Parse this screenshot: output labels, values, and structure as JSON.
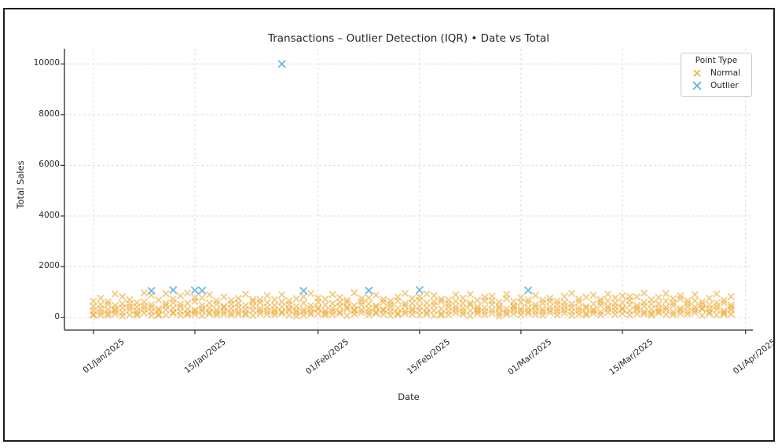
{
  "figure": {
    "border_color": "#1c1c1c",
    "background": "#ffffff",
    "grid_color": "#dcdcdc",
    "spine_color": "#2b2b2b",
    "text_color": "#262626"
  },
  "chart_data": {
    "type": "scatter",
    "title": "Transactions – Outlier Detection (IQR) • Date vs Total",
    "xlabel": "Date",
    "ylabel": "Total Sales",
    "grid": "dashed, both axes",
    "x_axis": {
      "kind": "date",
      "start": "01/Jan/2025",
      "end": "01/Apr/2025",
      "xlim_days": [
        -4,
        91
      ],
      "ticks": [
        {
          "day": 0,
          "label": "01/Jan/2025"
        },
        {
          "day": 14,
          "label": "15/Jan/2025"
        },
        {
          "day": 31,
          "label": "01/Feb/2025"
        },
        {
          "day": 45,
          "label": "15/Feb/2025"
        },
        {
          "day": 59,
          "label": "01/Mar/2025"
        },
        {
          "day": 73,
          "label": "15/Mar/2025"
        },
        {
          "day": 90,
          "label": "01/Apr/2025"
        }
      ]
    },
    "y_axis": {
      "ylim": [
        -500,
        10600
      ],
      "ticks": [
        {
          "value": 0,
          "label": "0"
        },
        {
          "value": 2000,
          "label": "2000"
        },
        {
          "value": 4000,
          "label": "4000"
        },
        {
          "value": 6000,
          "label": "6000"
        },
        {
          "value": 8000,
          "label": "8000"
        },
        {
          "value": 10000,
          "label": "10000"
        }
      ]
    },
    "legend": {
      "title": "Point Type",
      "position": "upper right",
      "entries": [
        {
          "label": "Normal",
          "marker": "x",
          "color": "#eda62c"
        },
        {
          "label": "Outlier",
          "marker": "x",
          "color": "#5bb3e4"
        }
      ]
    },
    "series": [
      {
        "name": "Normal",
        "marker": "x",
        "color": "#eda62c",
        "opacity": 0.6,
        "note": "estimated ~5 transactions per day, days 0-88 after 01/Jan/2025, totals ~60-975",
        "values_per_day": [
          [
            120,
            430,
            85,
            640,
            265
          ],
          [
            210,
            95,
            760,
            340,
            505
          ],
          [
            510,
            160,
            300,
            80,
            615
          ],
          [
            930,
            250,
            140,
            470,
            330
          ],
          [
            60,
            380,
            820,
            190,
            540
          ],
          [
            290,
            700,
            110,
            540,
            415
          ],
          [
            150,
            90,
            420,
            260,
            580
          ],
          [
            610,
            330,
            970,
            180,
            450
          ],
          [
            75,
            500,
            230,
            880,
            395
          ],
          [
            350,
            130,
            690,
            270,
            85
          ],
          [
            460,
            940,
            100,
            310,
            555
          ],
          [
            200,
            580,
            160,
            730,
            365
          ],
          [
            90,
            410,
            850,
            240,
            520
          ],
          [
            560,
            170,
            320,
            960,
            110
          ],
          [
            300,
            120,
            640,
            220,
            775
          ],
          [
            780,
            260,
            70,
            480,
            350
          ],
          [
            140,
            900,
            370,
            210,
            565
          ],
          [
            530,
            100,
            660,
            290,
            195
          ],
          [
            240,
            440,
            130,
            810,
            385
          ],
          [
            670,
            190,
            350,
            95,
            525
          ],
          [
            400,
            750,
            230,
            560,
            130
          ],
          [
            110,
            310,
            920,
            170,
            475
          ],
          [
            620,
            80,
            450,
            280,
            705
          ],
          [
            340,
            590,
            150,
            710,
            255
          ],
          [
            250,
            130,
            860,
            390,
            585
          ],
          [
            700,
            480,
            105,
            300,
            205
          ],
          [
            165,
            890,
            420,
            230,
            615
          ],
          [
            520,
            95,
            650,
            360,
            275
          ],
          [
            275,
            740,
            185,
            60,
            430
          ],
          [
            830,
            315,
            90,
            570,
            220
          ],
          [
            205,
            470,
            945,
            125,
            340
          ],
          [
            385,
            145,
            610,
            330,
            765
          ],
          [
            720,
            265,
            175,
            490,
            95
          ],
          [
            115,
            550,
            355,
            905,
            245
          ],
          [
            440,
            225,
            790,
            155,
            600
          ],
          [
            580,
            335,
            70,
            680,
            415
          ],
          [
            255,
            975,
            305,
            135,
            470
          ],
          [
            630,
            185,
            505,
            295,
            755
          ],
          [
            100,
            770,
            345,
            540,
            215
          ],
          [
            465,
            215,
            875,
            160,
            385
          ],
          [
            325,
            600,
            130,
            705,
            270
          ],
          [
            235,
            85,
            520,
            395,
            645
          ],
          [
            810,
            365,
            175,
            640,
            115
          ],
          [
            150,
            450,
            950,
            250,
            545
          ],
          [
            555,
            120,
            350,
            750,
            265
          ],
          [
            270,
            670,
            90,
            430,
            820
          ],
          [
            370,
            930,
            200,
            570,
            130
          ],
          [
            80,
            480,
            280,
            860,
            620
          ],
          [
            620,
            160,
            720,
            340,
            95
          ],
          [
            410,
            240,
            100,
            530,
            690
          ],
          [
            890,
            310,
            650,
            180,
            425
          ],
          [
            130,
            560,
            360,
            760,
            235
          ],
          [
            490,
            70,
            910,
            260,
            565
          ],
          [
            320,
            680,
            150,
            420,
            250
          ],
          [
            230,
            800,
            380,
            110,
            655
          ],
          [
            660,
            290,
            510,
            840,
            170
          ],
          [
            170,
            440,
            60,
            600,
            335
          ],
          [
            740,
            210,
            920,
            330,
            125
          ],
          [
            400,
            630,
            140,
            470,
            285
          ],
          [
            110,
            350,
            780,
            250,
            595
          ],
          [
            580,
            160,
            370,
            700,
            240
          ],
          [
            250,
            870,
            120,
            500,
            405
          ],
          [
            690,
            320,
            560,
            90,
            215
          ],
          [
            190,
            760,
            410,
            280,
            635
          ],
          [
            520,
            100,
            640,
            350,
            235
          ],
          [
            300,
            830,
            180,
            590,
            445
          ],
          [
            80,
            390,
            950,
            230,
            525
          ],
          [
            610,
            270,
            130,
            720,
            385
          ],
          [
            430,
            170,
            800,
            360,
            95
          ],
          [
            160,
            540,
            310,
            880,
            255
          ],
          [
            710,
            220,
            480,
            110,
            605
          ],
          [
            340,
            920,
            200,
            650,
            430
          ],
          [
            120,
            420,
            270,
            770,
            560
          ],
          [
            850,
            310,
            580,
            150,
            375
          ],
          [
            260,
            670,
            100,
            500,
            820
          ],
          [
            380,
            140,
            810,
            290,
            475
          ],
          [
            590,
            960,
            230,
            450,
            145
          ],
          [
            170,
            320,
            90,
            700,
            530
          ],
          [
            790,
            250,
            530,
            180,
            365
          ],
          [
            300,
            640,
            400,
            940,
            115
          ],
          [
            110,
            470,
            210,
            580,
            745
          ],
          [
            730,
            160,
            360,
            850,
            275
          ],
          [
            240,
            550,
            130,
            420,
            660
          ],
          [
            660,
            290,
            900,
            190,
            405
          ],
          [
            370,
            80,
            610,
            330,
            505
          ],
          [
            500,
            220,
            150,
            760,
            340
          ],
          [
            310,
            930,
            440,
            100,
            575
          ],
          [
            570,
            180,
            680,
            260,
            125
          ],
          [
            400,
            820,
            130,
            490,
            295
          ]
        ]
      },
      {
        "name": "Outlier",
        "marker": "x",
        "color": "#5bb3e4",
        "opacity": 0.9,
        "points": [
          {
            "day": 8,
            "date": "09/Jan/2025",
            "value": 1050
          },
          {
            "day": 11,
            "date": "12/Jan/2025",
            "value": 1080
          },
          {
            "day": 14,
            "date": "15/Jan/2025",
            "value": 1070
          },
          {
            "day": 15,
            "date": "16/Jan/2025",
            "value": 1060
          },
          {
            "day": 26,
            "date": "27/Jan/2025",
            "value": 10000
          },
          {
            "day": 29,
            "date": "30/Jan/2025",
            "value": 1050
          },
          {
            "day": 38,
            "date": "08/Feb/2025",
            "value": 1060
          },
          {
            "day": 45,
            "date": "15/Feb/2025",
            "value": 1080
          },
          {
            "day": 60,
            "date": "02/Mar/2025",
            "value": 1070
          }
        ]
      }
    ]
  }
}
